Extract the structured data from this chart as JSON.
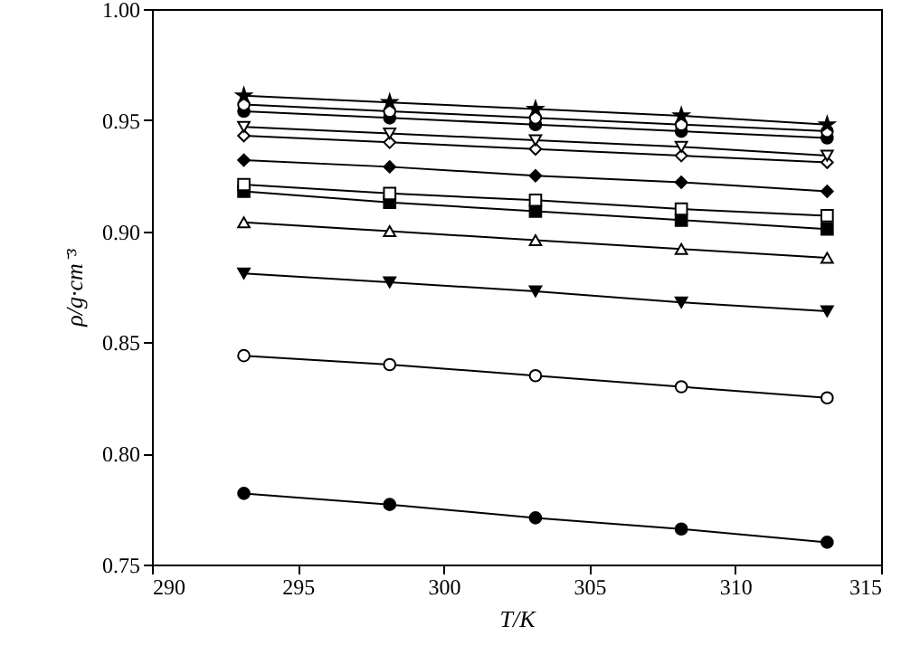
{
  "chart_data": {
    "type": "line",
    "xlabel": "T/K",
    "ylabel": "ρ/g·cm⁻³",
    "x": [
      293.15,
      298.15,
      303.15,
      308.15,
      313.15
    ],
    "xlim": [
      290,
      315
    ],
    "xticks": [
      290,
      295,
      300,
      305,
      310,
      315
    ],
    "ylim": [
      0.75,
      1.0
    ],
    "yticks": [
      {
        "value": 0.75,
        "label": "0.75"
      },
      {
        "value": 0.8,
        "label": "0.80"
      },
      {
        "value": 0.85,
        "label": "0.85"
      },
      {
        "value": 0.9,
        "label": "0.90"
      },
      {
        "value": 0.95,
        "label": "0.95"
      },
      {
        "value": 1.0,
        "label": "1.00"
      }
    ],
    "grid": false,
    "series": [
      {
        "color": "#000000",
        "marker": "star",
        "values": [
          0.961,
          0.958,
          0.955,
          0.952,
          0.948
        ]
      },
      {
        "color": "#ffffff",
        "marker": "circle",
        "values": [
          0.957,
          0.954,
          0.951,
          0.948,
          0.945
        ]
      },
      {
        "color": "#000000",
        "marker": "circle",
        "values": [
          0.954,
          0.951,
          0.948,
          0.945,
          0.942
        ]
      },
      {
        "color": "#ffffff",
        "marker": "triangle-down",
        "values": [
          0.947,
          0.944,
          0.941,
          0.938,
          0.934
        ]
      },
      {
        "color": "#ffffff",
        "marker": "diamond",
        "values": [
          0.943,
          0.94,
          0.937,
          0.934,
          0.931
        ]
      },
      {
        "color": "#000000",
        "marker": "diamond",
        "values": [
          0.932,
          0.929,
          0.925,
          0.922,
          0.918
        ]
      },
      {
        "color": "#ffffff",
        "marker": "square",
        "values": [
          0.921,
          0.917,
          0.914,
          0.91,
          0.907
        ]
      },
      {
        "color": "#000000",
        "marker": "square",
        "values": [
          0.918,
          0.913,
          0.909,
          0.905,
          0.901
        ]
      },
      {
        "color": "#ffffff",
        "marker": "triangle",
        "values": [
          0.904,
          0.9,
          0.896,
          0.892,
          0.888
        ]
      },
      {
        "color": "#000000",
        "marker": "triangle-down",
        "values": [
          0.881,
          0.877,
          0.873,
          0.868,
          0.864
        ]
      },
      {
        "color": "#ffffff",
        "marker": "circle",
        "values": [
          0.844,
          0.84,
          0.835,
          0.83,
          0.825
        ]
      },
      {
        "color": "#000000",
        "marker": "circle",
        "values": [
          0.782,
          0.777,
          0.771,
          0.766,
          0.76
        ]
      }
    ]
  }
}
